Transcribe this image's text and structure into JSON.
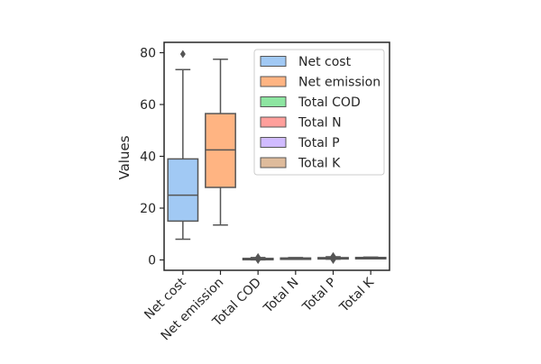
{
  "chart_data": {
    "type": "box",
    "title": "",
    "xlabel": "",
    "ylabel": "Values",
    "ylim": [
      -4,
      84
    ],
    "yticks": [
      0,
      20,
      40,
      60,
      80
    ],
    "grid": false,
    "legend_position": "top-right",
    "categories": [
      "Net cost",
      "Net emission",
      "Total COD",
      "Total N",
      "Total P",
      "Total K"
    ],
    "colors": [
      "#a1c9f4",
      "#ffb482",
      "#8de5a1",
      "#ff9f9b",
      "#d0bbff",
      "#debb9b"
    ],
    "boxes": [
      {
        "min": 8,
        "q1": 15,
        "median": 25,
        "q3": 39,
        "max": 73.5,
        "outliers": [
          79.5
        ]
      },
      {
        "min": 13.5,
        "q1": 28,
        "median": 42.5,
        "q3": 56.5,
        "max": 77.5,
        "outliers": []
      },
      {
        "min": 0.05,
        "q1": 0.3,
        "median": 0.45,
        "q3": 0.6,
        "max": 0.9,
        "outliers": [
          0.0,
          1.1
        ]
      },
      {
        "min": 0.4,
        "q1": 0.55,
        "median": 0.65,
        "q3": 0.75,
        "max": 0.9,
        "outliers": []
      },
      {
        "min": 0.3,
        "q1": 0.55,
        "median": 0.7,
        "q3": 0.9,
        "max": 1.2,
        "outliers": [
          0.0,
          1.5
        ]
      },
      {
        "min": 0.6,
        "q1": 0.75,
        "median": 0.85,
        "q3": 0.95,
        "max": 1.1,
        "outliers": []
      }
    ],
    "legend": [
      "Net cost",
      "Net emission",
      "Total COD",
      "Total N",
      "Total P",
      "Total K"
    ]
  }
}
